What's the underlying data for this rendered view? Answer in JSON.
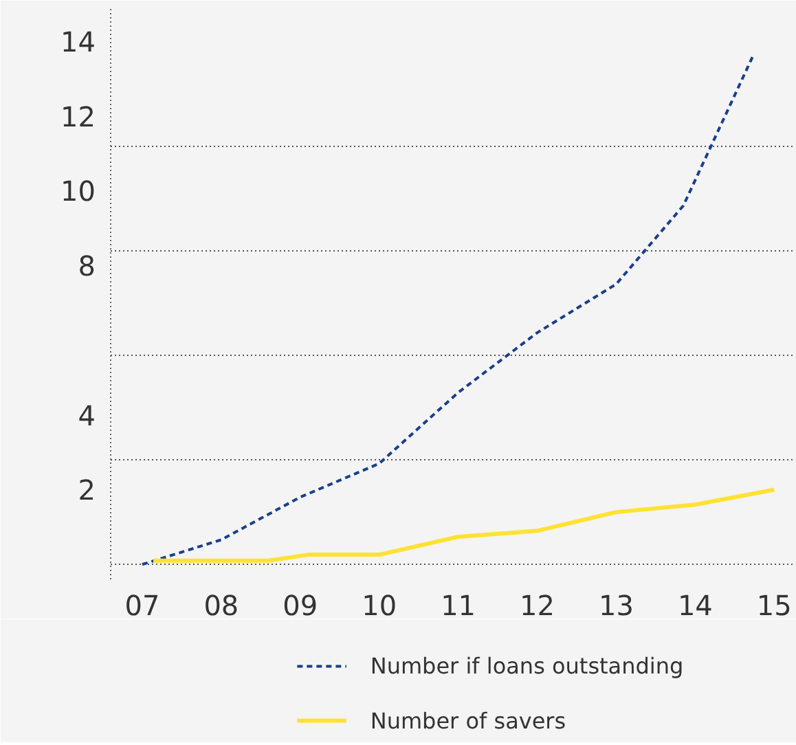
{
  "chart_data": {
    "type": "line",
    "x": [
      7,
      8,
      9,
      10,
      11,
      12,
      13,
      13.85,
      14.73
    ],
    "xlim": [
      6.6,
      15.25
    ],
    "ylim": [
      -0.4,
      14.9
    ],
    "xticks": [
      {
        "value": 7,
        "label": "07"
      },
      {
        "value": 8,
        "label": "08"
      },
      {
        "value": 9,
        "label": "09"
      },
      {
        "value": 10,
        "label": "10"
      },
      {
        "value": 11,
        "label": "11"
      },
      {
        "value": 12,
        "label": "12"
      },
      {
        "value": 13,
        "label": "13"
      },
      {
        "value": 14,
        "label": "14"
      },
      {
        "value": 15,
        "label": "15"
      }
    ],
    "yticks": [
      {
        "value": 0,
        "label": null
      },
      {
        "value": 2.8,
        "label": null
      },
      {
        "value": 5.6,
        "label": null
      },
      {
        "value": 8.4,
        "label": null
      },
      {
        "value": 11.2,
        "label": null
      },
      2,
      4,
      8,
      10,
      12,
      14
    ],
    "grid": "y",
    "legend": "bottom",
    "series": [
      {
        "name": "Number if loans outstanding",
        "color": "#1a3f8a",
        "line_style": "dashed",
        "values": [
          0,
          0.66,
          1.8,
          2.7,
          4.6,
          6.2,
          7.5,
          9.6,
          13.6
        ]
      },
      {
        "name": "Number of savers",
        "color": "#fee233",
        "line_style": "solid",
        "x": [
          7.14,
          8,
          8.6,
          9.1,
          10,
          11,
          12,
          13,
          14,
          15
        ],
        "values": [
          0.1,
          0.1,
          0.1,
          0.26,
          0.26,
          0.74,
          0.9,
          1.4,
          1.6,
          2.0
        ]
      }
    ]
  }
}
